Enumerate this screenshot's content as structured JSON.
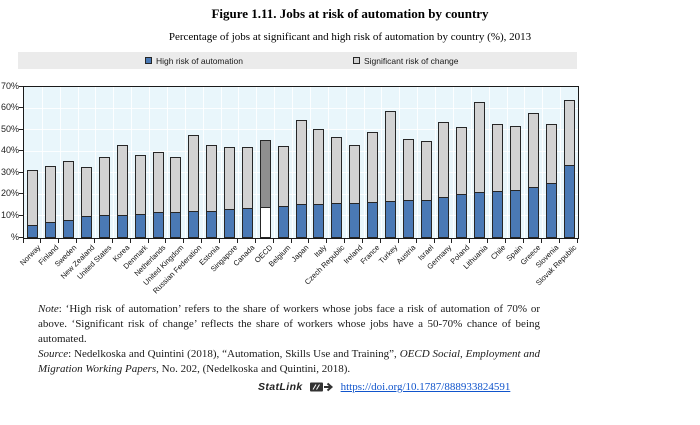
{
  "figure": {
    "title": "Figure 1.11. Jobs at risk of automation by country",
    "subtitle": "Percentage of jobs at significant and high risk of automation by country (%), 2013"
  },
  "legend": {
    "items": [
      {
        "label": "High risk of automation",
        "color": "#4a79b5"
      },
      {
        "label": "Significant risk of change",
        "color": "#d2d2d2"
      }
    ]
  },
  "chart_data": {
    "type": "bar",
    "stacked": true,
    "title": "Jobs at risk of automation by country",
    "xlabel": "",
    "ylabel": "%",
    "ylim": [
      0,
      70
    ],
    "ytick_labels": [
      "70%",
      "60%",
      "50%",
      "40%",
      "30%",
      "20%",
      "10%",
      "%"
    ],
    "grid": true,
    "legend_position": "top",
    "plot_background": "#e9f6fb",
    "categories": [
      "Norway",
      "Finland",
      "Sweden",
      "New Zealand",
      "United States",
      "Korea",
      "Denmark",
      "Netherlands",
      "United Kingdom",
      "Russian Federation",
      "Estonia",
      "Singapore",
      "Canada",
      "OECD",
      "Belgium",
      "Japan",
      "Italy",
      "Czech Republic",
      "Ireland",
      "France",
      "Turkey",
      "Austria",
      "Israel",
      "Germany",
      "Poland",
      "Lithuania",
      "Chile",
      "Spain",
      "Greece",
      "Slovenia",
      "Slovak Republic"
    ],
    "series": [
      {
        "name": "High risk of automation",
        "color": "#4a79b5",
        "values": [
          5.7,
          7.2,
          8.0,
          9.6,
          10.2,
          10.4,
          10.7,
          11.4,
          11.7,
          12.0,
          12.3,
          13.0,
          13.5,
          14.0,
          14.3,
          15.1,
          15.3,
          15.6,
          15.9,
          16.4,
          16.9,
          17.1,
          17.4,
          18.4,
          19.8,
          20.9,
          21.2,
          21.7,
          23.3,
          25.0,
          33.6
        ]
      },
      {
        "name": "Significant risk of change",
        "color": "#d2d2d2",
        "values": [
          25.8,
          26.3,
          27.5,
          23.4,
          27.3,
          32.6,
          27.8,
          28.6,
          26.1,
          35.8,
          30.7,
          29.0,
          28.5,
          31.5,
          28.2,
          39.4,
          35.2,
          31.2,
          27.1,
          32.6,
          42.1,
          28.9,
          27.6,
          35.6,
          31.7,
          42.1,
          31.8,
          30.3,
          34.7,
          28.0,
          30.4
        ]
      }
    ],
    "highlight": {
      "category": "OECD",
      "high_color": "#ffffff",
      "significant_color": "#8f8f8f"
    }
  },
  "note": {
    "label": "Note",
    "text": ": ‘High risk of automation’ refers to the share of workers whose jobs face a risk of automation of 70% or above. ‘Significant risk of change’ reflects the share of workers whose jobs have a 50-70% chance of being automated."
  },
  "source": {
    "label": "Source",
    "text_before": ": Nedelkoska and Quintini (2018), “Automation, Skills Use and Training”, ",
    "journal": "OECD Social, Employment and Migration Working Papers",
    "text_after": ", No. 202, (Nedelkoska and Quintini, 2018)."
  },
  "statlink": {
    "label": "StatLink",
    "url": "https://doi.org/10.1787/888933824591",
    "link_color": "#1155cc"
  }
}
